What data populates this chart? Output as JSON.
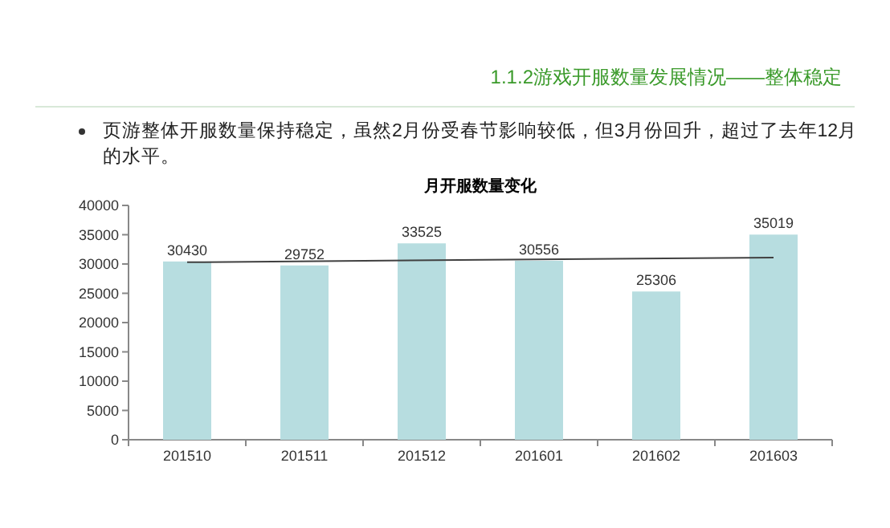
{
  "chart_data": {
    "type": "bar",
    "title": "月开服数量变化",
    "annotations": [
      "1.1.2游戏开服数量发展情况——整体稳定",
      "页游整体开服数量保持稳定，虽然2月份受春节影响较低，但3月份回升，超过了去年12月的水平。"
    ],
    "categories": [
      "201510",
      "201511",
      "201512",
      "201601",
      "201602",
      "201603"
    ],
    "series": [
      {
        "color": "#b7dde0",
        "values": [
          30430,
          29752,
          33525,
          30556,
          25306,
          35019
        ],
        "value_labels": [
          "30430",
          "29752",
          "33525",
          "30556",
          "25306",
          "35019"
        ]
      },
      {
        "type": "line",
        "color": "#404040",
        "x": [
          "201510",
          "201603"
        ],
        "values": [
          30300,
          31100
        ]
      }
    ],
    "ylim": [
      0,
      40000
    ],
    "yticks": [
      0,
      5000,
      10000,
      15000,
      20000,
      25000,
      30000,
      35000,
      40000
    ],
    "grid": false
  }
}
